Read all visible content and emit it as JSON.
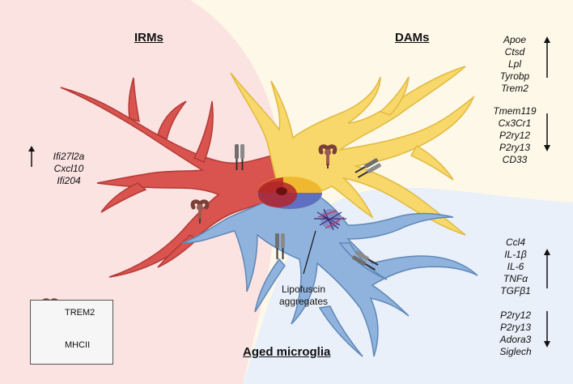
{
  "titles": {
    "irms": "IRMs",
    "dams": "DAMs",
    "aged": "Aged microglia"
  },
  "irms_genes_up": [
    "Ifi27l2a",
    "Cxcl10",
    "Ifi204"
  ],
  "dams_genes_up": [
    "Apoe",
    "Ctsd",
    "Lpl",
    "Tyrobp",
    "Trem2"
  ],
  "dams_genes_down": [
    "Tmem119",
    "Cx3Cr1",
    "P2ry12",
    "P2ry13",
    "CD33"
  ],
  "aged_genes_up": [
    "Ccl4",
    "IL-1β",
    "IL-6",
    "TNFα",
    "TGFβ1"
  ],
  "aged_genes_down": [
    "P2ry12",
    "P2ry13",
    "Adora3",
    "Siglech"
  ],
  "lipofuscin_label": [
    "Lipofuscin",
    "aggregates"
  ],
  "legend": {
    "trem2": "TREM2",
    "mhcii": "MHCII"
  },
  "colors": {
    "irms_cell": "#d9534f",
    "dams_cell": "#f8d86a",
    "aged_cell": "#8fb3dc",
    "irms_bg": "#fbe3e1",
    "dams_bg": "#fdf8e8",
    "aged_bg": "#e9f0fa",
    "trem2": "#9c5b52",
    "mhcii": "#7a7a7a"
  }
}
